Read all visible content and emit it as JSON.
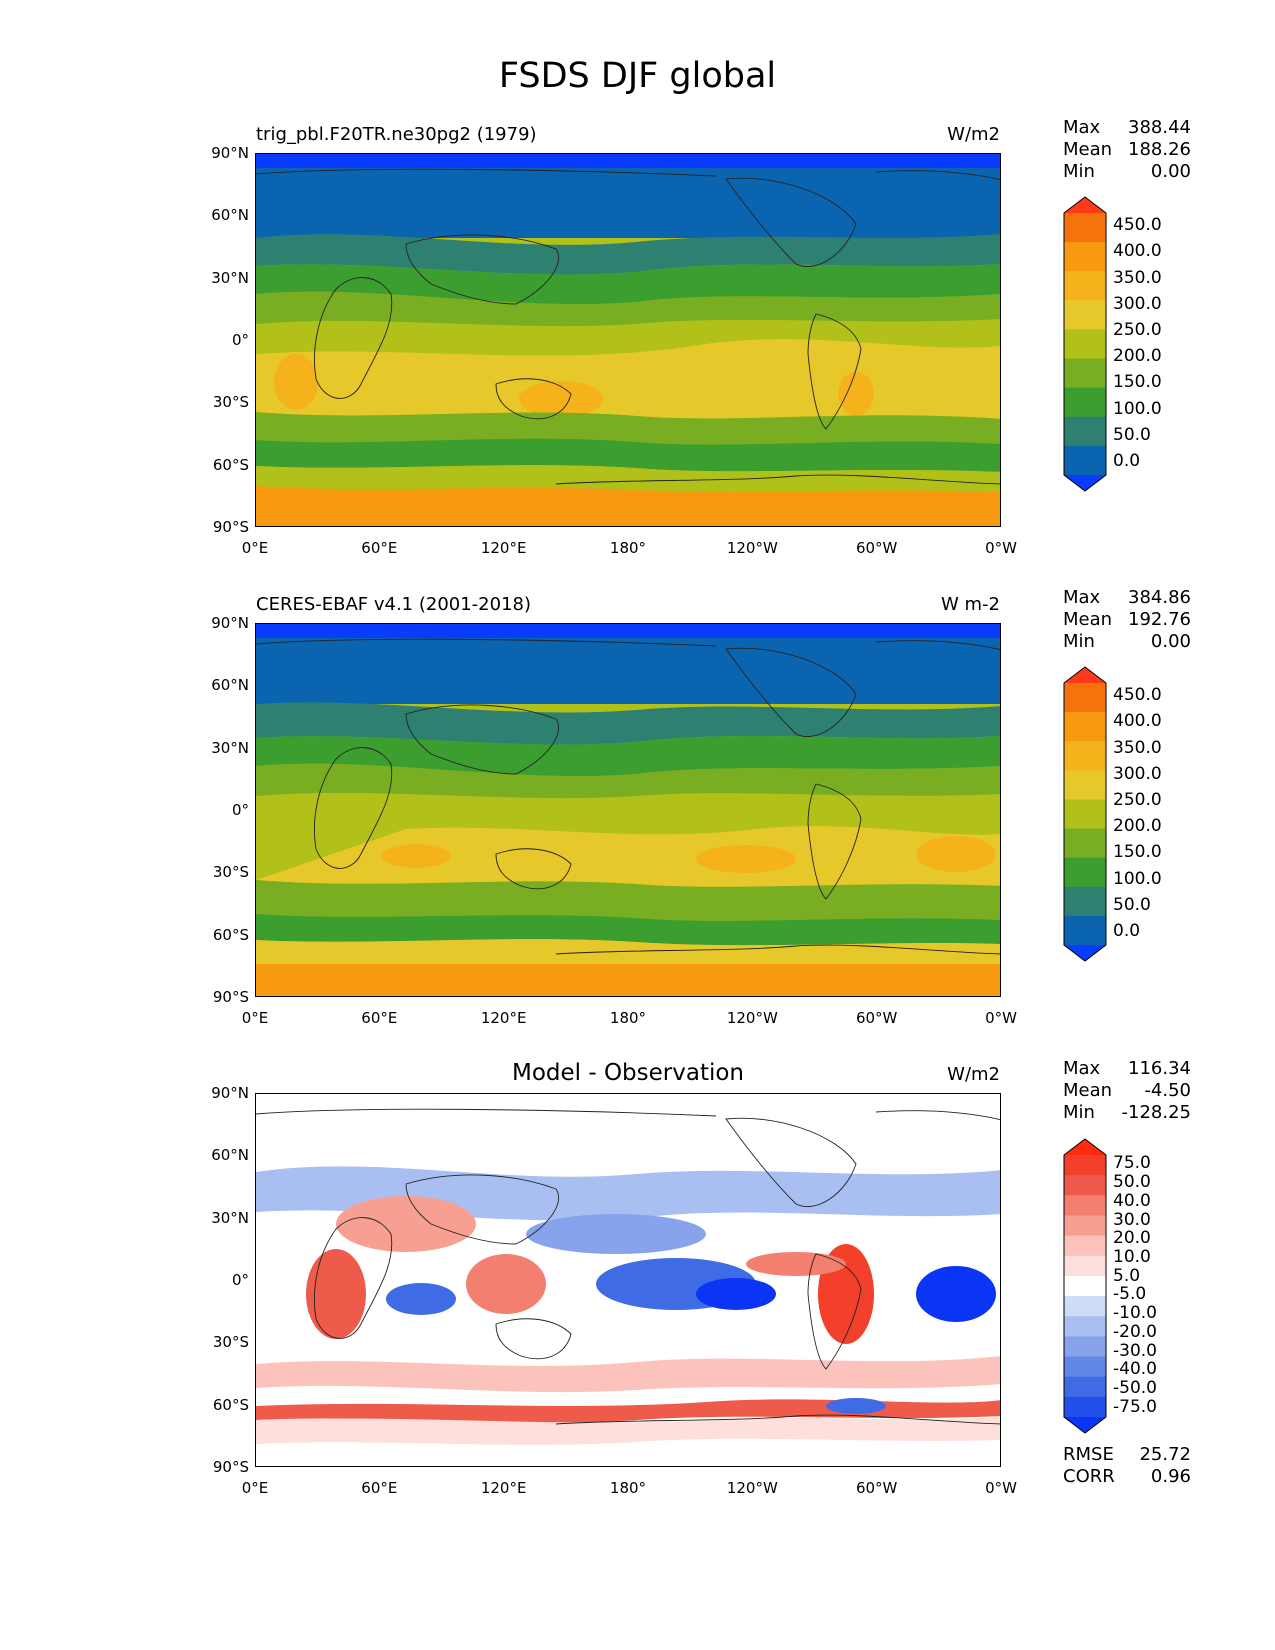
{
  "title": "FSDS DJF global",
  "panels": [
    {
      "id": "test",
      "left_title": "trig_pbl.F20TR.ne30pg2 (1979)",
      "center_title": "",
      "units": "W/m2",
      "stats": [
        {
          "label": "Max",
          "value": "388.44"
        },
        {
          "label": "Mean",
          "value": "188.26"
        },
        {
          "label": "Min",
          "value": "0.00"
        }
      ],
      "colorbar": {
        "levels": [
          "0.0",
          "50.0",
          "100.0",
          "150.0",
          "200.0",
          "250.0",
          "300.0",
          "350.0",
          "400.0",
          "450.0"
        ],
        "colors": [
          "#0a3cff",
          "#0b64b0",
          "#2e8071",
          "#3b9e2f",
          "#79ad22",
          "#b2c11a",
          "#e6c82a",
          "#f5b21b",
          "#f79a10",
          "#f5720c",
          "#ff3a1a"
        ]
      }
    },
    {
      "id": "reference",
      "left_title": "CERES-EBAF v4.1 (2001-2018)",
      "center_title": "",
      "units": "W m-2",
      "stats": [
        {
          "label": "Max",
          "value": "384.86"
        },
        {
          "label": "Mean",
          "value": "192.76"
        },
        {
          "label": "Min",
          "value": "0.00"
        }
      ],
      "colorbar": {
        "levels": [
          "0.0",
          "50.0",
          "100.0",
          "150.0",
          "200.0",
          "250.0",
          "300.0",
          "350.0",
          "400.0",
          "450.0"
        ],
        "colors": [
          "#0a3cff",
          "#0b64b0",
          "#2e8071",
          "#3b9e2f",
          "#79ad22",
          "#b2c11a",
          "#e6c82a",
          "#f5b21b",
          "#f79a10",
          "#f5720c",
          "#ff3a1a"
        ]
      }
    },
    {
      "id": "difference",
      "left_title": "",
      "center_title": "Model - Observation",
      "units": "W/m2",
      "stats": [
        {
          "label": "Max",
          "value": "116.34"
        },
        {
          "label": "Mean",
          "value": "-4.50"
        },
        {
          "label": "Min",
          "value": "-128.25"
        }
      ],
      "colorbar": {
        "levels": [
          "-75.0",
          "-50.0",
          "-40.0",
          "-30.0",
          "-20.0",
          "-10.0",
          "-5.0",
          "5.0",
          "10.0",
          "20.0",
          "30.0",
          "40.0",
          "50.0",
          "75.0"
        ],
        "colors": [
          "#0b35f5",
          "#2350ea",
          "#3f6be4",
          "#6287e8",
          "#86a3ec",
          "#a9bff2",
          "#cfdcf7",
          "#ffffff",
          "#fde0dc",
          "#fbc3bb",
          "#f7a092",
          "#f37f70",
          "#ef5b4b",
          "#f3402b",
          "#ff2a0f"
        ]
      },
      "metrics": [
        {
          "label": "RMSE",
          "value": "25.72"
        },
        {
          "label": "CORR",
          "value": "0.96"
        }
      ]
    }
  ],
  "axes": {
    "lat_ticks": [
      "90°N",
      "60°N",
      "30°N",
      "0°",
      "30°S",
      "60°S",
      "90°S"
    ],
    "lon_ticks": [
      "0°E",
      "60°E",
      "120°E",
      "180°",
      "120°W",
      "60°W",
      "0°W"
    ]
  }
}
